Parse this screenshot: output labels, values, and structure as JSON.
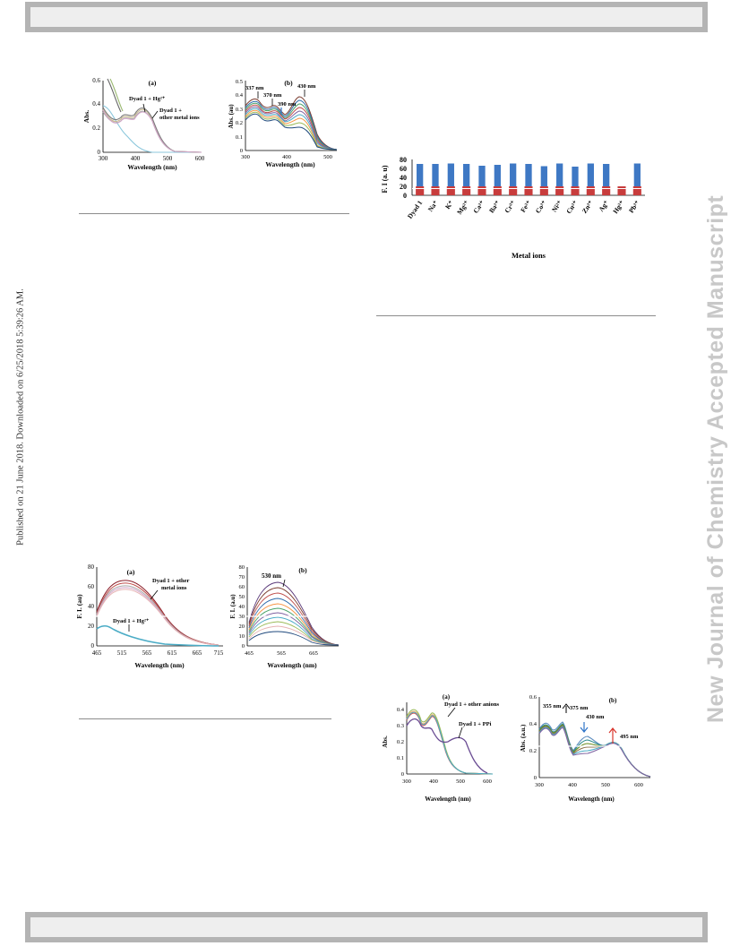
{
  "side_text": {
    "published": "Published on 21 June 2018. Downloaded on 6/25/2018 5:39:26 AM.",
    "journal": "New Journal of Chemistry Accepted Manuscript"
  },
  "figures": {
    "abs_metal": {
      "panel_a": {
        "label": "(a)",
        "xlabel": "Wavelength (nm)",
        "ylabel": "Abs.",
        "xticks": [
          "300",
          "400",
          "500",
          "600"
        ],
        "yticks": [
          "0",
          "0.2",
          "0.4",
          "0.6"
        ],
        "annot_hg": "Dyad 1 + Hg²⁺",
        "annot_other_1": "Dyad 1 +",
        "annot_other_2": "other metal ions"
      },
      "panel_b": {
        "label": "(b)",
        "xlabel": "Wavelength (nm)",
        "ylabel": "Abs. (au)",
        "xticks": [
          "300",
          "400",
          "500"
        ],
        "yticks": [
          "0",
          "0.1",
          "0.2",
          "0.3",
          "0.4",
          "0.5"
        ],
        "annot_337": "337 nm",
        "annot_370": "370 nm",
        "annot_390": "390 nm",
        "annot_430": "430 nm"
      }
    },
    "bar_fi": {
      "ylabel": "F. I (a. u)",
      "xlabel": "Metal ions",
      "yticks": [
        "0",
        "20",
        "40",
        "60",
        "80"
      ]
    },
    "fluor": {
      "panel_a": {
        "label": "(a)",
        "xlabel": "Wavelength (nm)",
        "ylabel": "F. I. (au)",
        "xticks": [
          "465",
          "515",
          "565",
          "615",
          "665",
          "715"
        ],
        "yticks": [
          "0",
          "20",
          "40",
          "60",
          "80"
        ],
        "annot_other_1": "Dyad 1 + other",
        "annot_other_2": "metal ions",
        "annot_hg": "Dyad 1 + Hg²⁺"
      },
      "panel_b": {
        "label": "(b)",
        "xlabel": "Wavelength (nm)",
        "ylabel": "F. I. (a.u)",
        "xticks": [
          "465",
          "565",
          "665"
        ],
        "yticks": [
          "0",
          "10",
          "20",
          "30",
          "40",
          "50",
          "60",
          "70",
          "80"
        ],
        "annot_530": "530 nm"
      }
    },
    "abs_anion": {
      "panel_a": {
        "label": "(a)",
        "xlabel": "Wavelength (nm)",
        "ylabel": "Abs.",
        "xticks": [
          "300",
          "400",
          "500",
          "600"
        ],
        "yticks": [
          "0",
          "0.1",
          "0.2",
          "0.3",
          "0.4"
        ],
        "annot_other": "Dyad 1 + other anions",
        "annot_ppi": "Dyad 1 + PPi"
      },
      "panel_b": {
        "label": "(b)",
        "xlabel": "Wavelength (nm)",
        "ylabel": "Abs. (a.u.)",
        "xticks": [
          "300",
          "400",
          "500",
          "600"
        ],
        "yticks": [
          "0",
          "0.2",
          "0.4",
          "0.6"
        ],
        "annot_355": "355 nm",
        "annot_375": "375 nm",
        "annot_430": "430 nm",
        "annot_495": "495 nm"
      }
    }
  },
  "chart_data": [
    {
      "type": "bar",
      "xlabel": "Metal ions",
      "ylabel": "F. I (a. u)",
      "ylim": [
        0,
        80
      ],
      "categories": [
        "Dyad 1",
        "Na⁺",
        "K⁺",
        "Mg²⁺",
        "Ca²⁺",
        "Ba²⁺",
        "Cr³⁺",
        "Fe²⁺",
        "Co²⁺",
        "Ni²⁺",
        "Cu²⁺",
        "Zn²⁺",
        "Ag⁺",
        "Hg²⁺",
        "Pb²⁺"
      ],
      "series": [
        {
          "values": [
            70,
            70,
            71,
            70,
            66,
            68,
            71,
            70,
            65,
            71,
            64,
            71,
            70,
            14,
            71
          ],
          "color": "#3e78c4"
        },
        {
          "values": [
            20,
            20,
            20,
            20,
            20,
            20,
            20,
            20,
            20,
            20,
            20,
            20,
            20,
            20,
            20
          ],
          "color": "#c83c3c"
        }
      ]
    }
  ]
}
